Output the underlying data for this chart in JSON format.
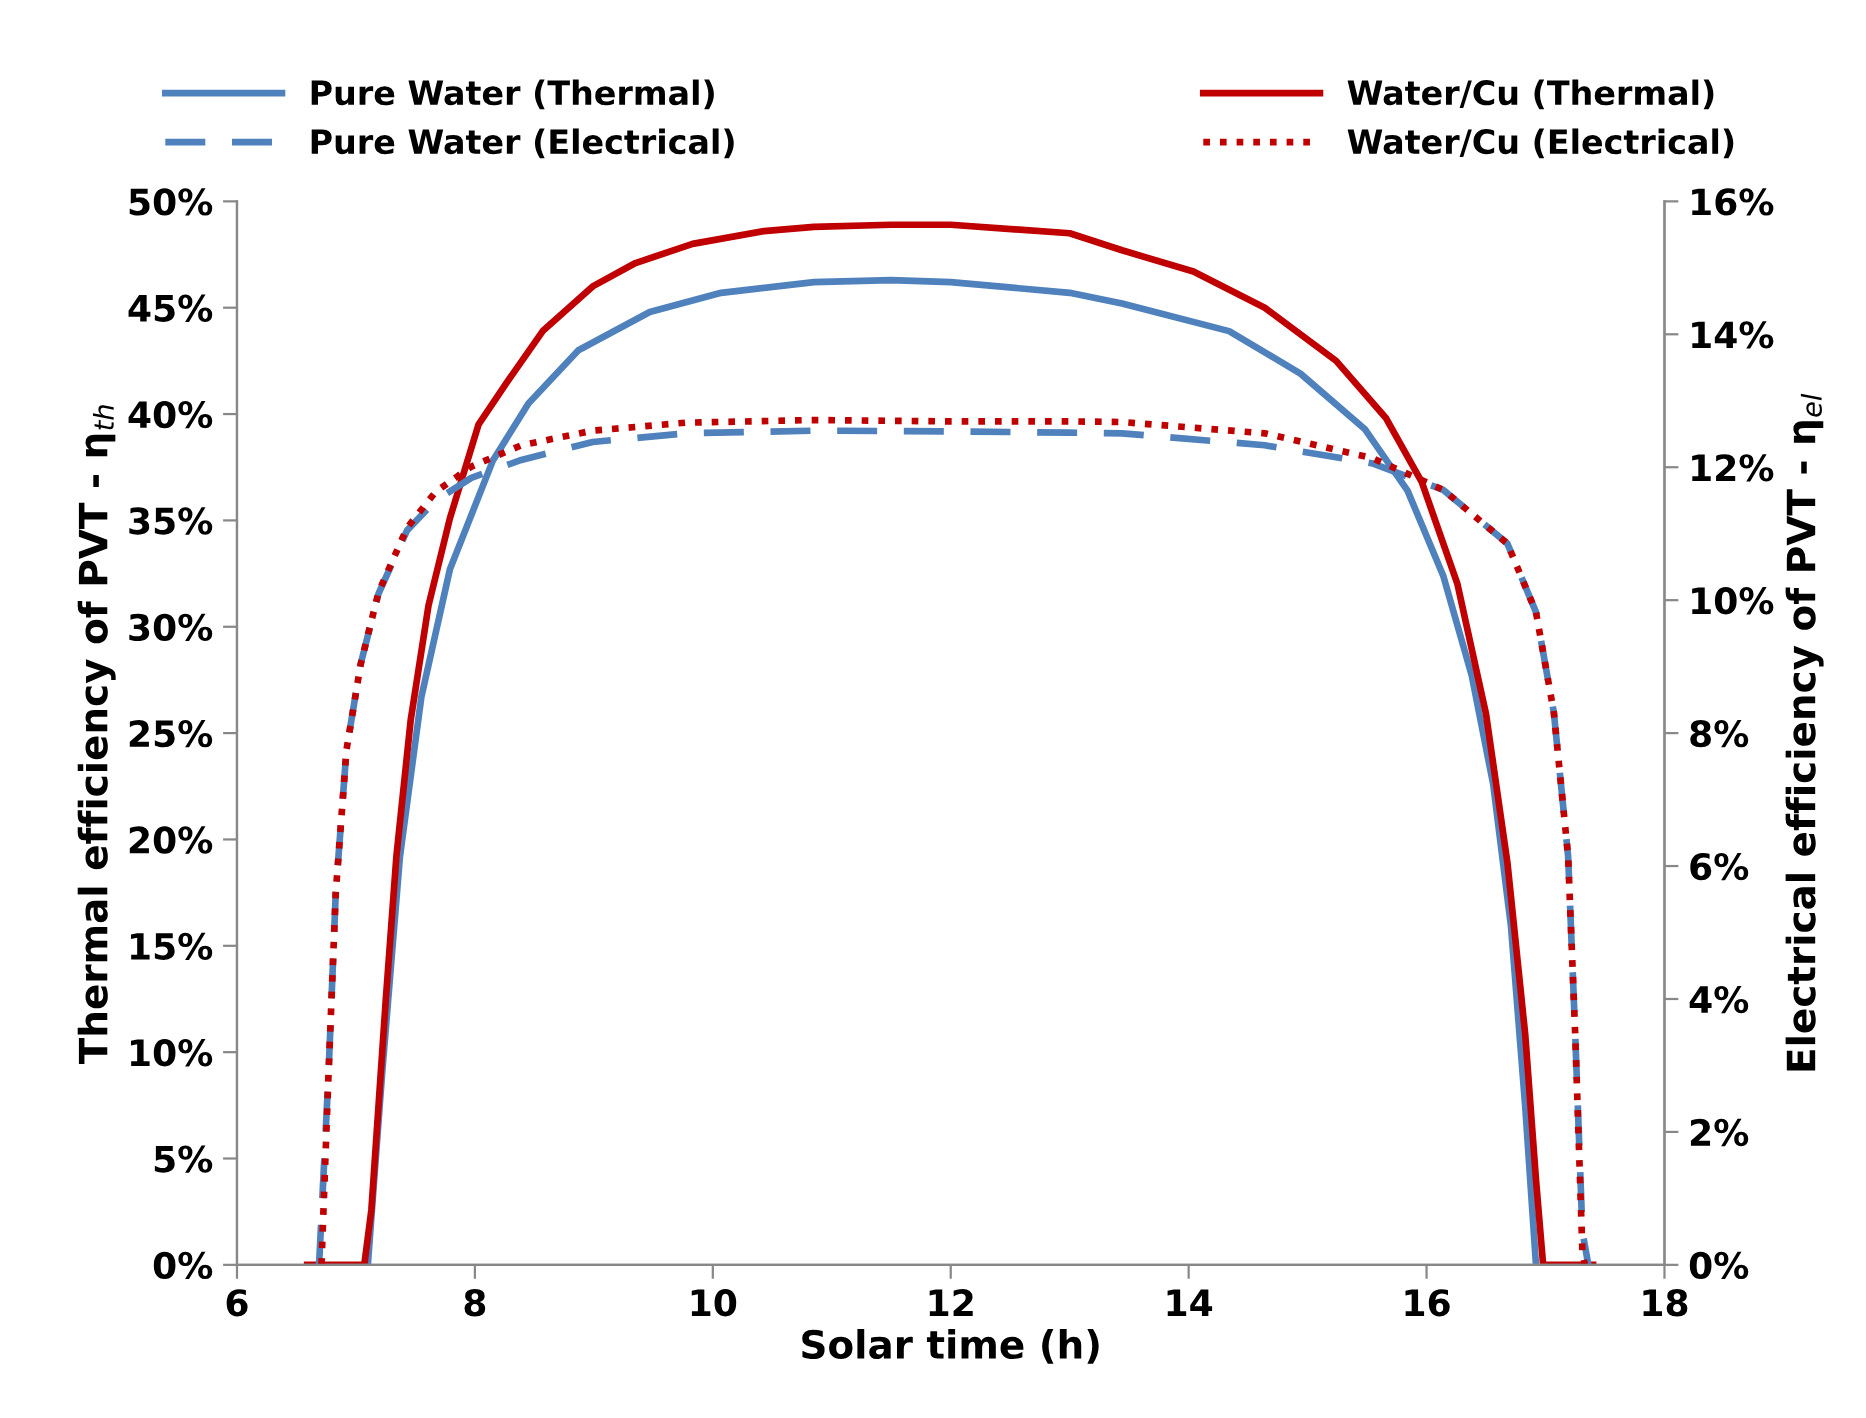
{
  "chart_data": {
    "type": "line",
    "xlabel": "Solar time (h)",
    "ylabel": "Thermal efficiency of PVT - η$_{th}$",
    "y2label": "Electrical efficiency of PVT - η$_{el}$",
    "xlim": [
      6,
      18
    ],
    "xticks": [
      6,
      8,
      10,
      12,
      14,
      16,
      18
    ],
    "ylim": [
      0,
      50
    ],
    "yticks": [
      {
        "value": 0,
        "label": "0%"
      },
      {
        "value": 5,
        "label": "5%"
      },
      {
        "value": 10,
        "label": "10%"
      },
      {
        "value": 15,
        "label": "15%"
      },
      {
        "value": 20,
        "label": "20%"
      },
      {
        "value": 25,
        "label": "25%"
      },
      {
        "value": 30,
        "label": "30%"
      },
      {
        "value": 35,
        "label": "35%"
      },
      {
        "value": 40,
        "label": "40%"
      },
      {
        "value": 45,
        "label": "45%"
      },
      {
        "value": 50,
        "label": "50%"
      }
    ],
    "y2lim": [
      0,
      16
    ],
    "y2ticks": [
      {
        "value": 0,
        "label": "0%"
      },
      {
        "value": 2,
        "label": "2%"
      },
      {
        "value": 4,
        "label": "4%"
      },
      {
        "value": 6,
        "label": "6%"
      },
      {
        "value": 8,
        "label": "8%"
      },
      {
        "value": 10,
        "label": "10%"
      },
      {
        "value": 12,
        "label": "12%"
      },
      {
        "value": 14,
        "label": "14%"
      },
      {
        "value": 16,
        "label": "16%"
      }
    ],
    "grid": false,
    "legend": "top",
    "marker": "none",
    "series": [
      {
        "name": "Pure Water (Thermal)",
        "color": "#4f81bd",
        "line_style": "solid",
        "x": [
          7.1,
          7.22,
          7.37,
          7.55,
          7.79,
          8.15,
          8.45,
          8.87,
          9.47,
          10.07,
          10.85,
          11.5,
          12,
          13,
          13.44,
          14.34,
          14.94,
          15.48,
          15.84,
          16.14,
          16.38,
          16.56,
          16.71,
          16.83,
          16.92
        ],
        "values": [
          0,
          9.0,
          19.2,
          26.7,
          32.7,
          37.8,
          40.5,
          43.0,
          44.8,
          45.7,
          46.2,
          46.3,
          46.2,
          45.7,
          45.2,
          43.9,
          41.9,
          39.3,
          36.4,
          32.4,
          27.7,
          22.6,
          15.9,
          7.4,
          0
        ]
      },
      {
        "name": "Pure Water (Electrical)",
        "color": "#4f81bd",
        "line_style": "dashed",
        "axis": "y2",
        "x": [
          6.69,
          6.77,
          6.83,
          6.92,
          7.04,
          7.19,
          7.43,
          7.67,
          7.97,
          8.39,
          8.99,
          9.77,
          10.85,
          12,
          13,
          13.44,
          14.64,
          15.54,
          16.14,
          16.68,
          16.92,
          17.07,
          17.19,
          17.25,
          17.31,
          17.36
        ],
        "values": [
          0,
          2.89,
          5.59,
          7.74,
          9.04,
          10.1,
          11.05,
          11.5,
          11.84,
          12.11,
          12.38,
          12.51,
          12.55,
          12.54,
          12.52,
          12.51,
          12.33,
          12.06,
          11.66,
          10.85,
          9.82,
          8.31,
          6.15,
          3.45,
          0.5,
          0
        ]
      },
      {
        "name": "Water/Cu (Thermal)",
        "color": "#c00000",
        "line_style": "solid",
        "x": [
          6.59,
          7.07,
          7.13,
          7.25,
          7.34,
          7.46,
          7.61,
          7.79,
          8.03,
          8.27,
          8.57,
          8.99,
          9.35,
          9.83,
          10.43,
          10.85,
          11.5,
          12,
          13,
          13.44,
          14.04,
          14.64,
          15.24,
          15.66,
          15.96,
          16.26,
          16.5,
          16.68,
          16.83,
          16.92,
          16.98,
          17.4
        ],
        "values": [
          0,
          0,
          2.6,
          12.4,
          19.2,
          25.6,
          31.0,
          35.1,
          39.5,
          41.5,
          43.9,
          46.0,
          47.1,
          48.0,
          48.6,
          48.8,
          48.9,
          48.9,
          48.5,
          47.7,
          46.7,
          45.0,
          42.5,
          39.8,
          36.8,
          32.0,
          25.9,
          18.9,
          10.8,
          4.0,
          0,
          0
        ]
      },
      {
        "name": "Water/Cu (Electrical)",
        "color": "#c00000",
        "line_style": "dotted",
        "axis": "y2",
        "x": [
          6.71,
          6.77,
          6.83,
          6.92,
          7.04,
          7.19,
          7.43,
          7.67,
          7.97,
          8.39,
          8.99,
          9.77,
          10.85,
          12,
          13,
          13.44,
          14.64,
          15.54,
          16.14,
          16.68,
          16.92,
          17.07,
          17.19,
          17.25,
          17.31,
          17.33
        ],
        "values": [
          0,
          2.89,
          5.59,
          7.74,
          9.04,
          10.12,
          11.09,
          11.63,
          12.01,
          12.33,
          12.55,
          12.67,
          12.71,
          12.69,
          12.69,
          12.68,
          12.51,
          12.14,
          11.66,
          10.85,
          9.82,
          8.31,
          6.15,
          3.45,
          0.2,
          0
        ]
      }
    ]
  }
}
